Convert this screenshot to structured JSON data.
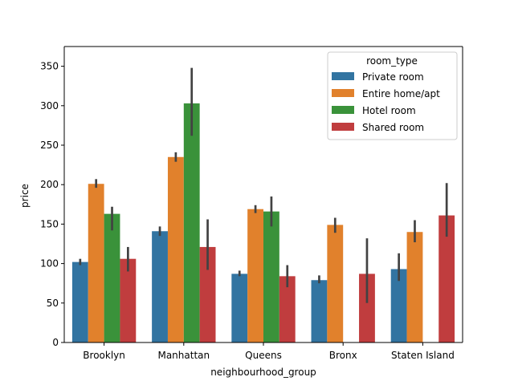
{
  "chart_data": {
    "type": "bar",
    "title": "",
    "xlabel": "neighbourhood_group",
    "ylabel": "price",
    "ylim": [
      0,
      375
    ],
    "yticks": [
      0,
      50,
      100,
      150,
      200,
      250,
      300,
      350
    ],
    "categories": [
      "Brooklyn",
      "Manhattan",
      "Queens",
      "Bronx",
      "Staten Island"
    ],
    "legend": {
      "title": "room_type",
      "placement": "top-right"
    },
    "series": [
      {
        "name": "Private room",
        "color": "#3274a1",
        "values": [
          102,
          141,
          87,
          79,
          93
        ],
        "ci_low": [
          98,
          135,
          84,
          75,
          78
        ],
        "ci_high": [
          106,
          147,
          91,
          85,
          113
        ]
      },
      {
        "name": "Entire home/apt",
        "color": "#e1812c",
        "values": [
          201,
          235,
          169,
          149,
          140
        ],
        "ci_low": [
          196,
          229,
          164,
          139,
          127
        ],
        "ci_high": [
          207,
          241,
          174,
          158,
          155
        ]
      },
      {
        "name": "Hotel room",
        "color": "#3a923a",
        "values": [
          163,
          303,
          166,
          null,
          null
        ],
        "ci_low": [
          142,
          262,
          147,
          null,
          null
        ],
        "ci_high": [
          172,
          348,
          185,
          null,
          null
        ]
      },
      {
        "name": "Shared room",
        "color": "#c03d3e",
        "values": [
          106,
          121,
          84,
          87,
          161
        ],
        "ci_low": [
          90,
          92,
          70,
          50,
          134
        ],
        "ci_high": [
          121,
          156,
          98,
          132,
          202
        ]
      }
    ]
  }
}
